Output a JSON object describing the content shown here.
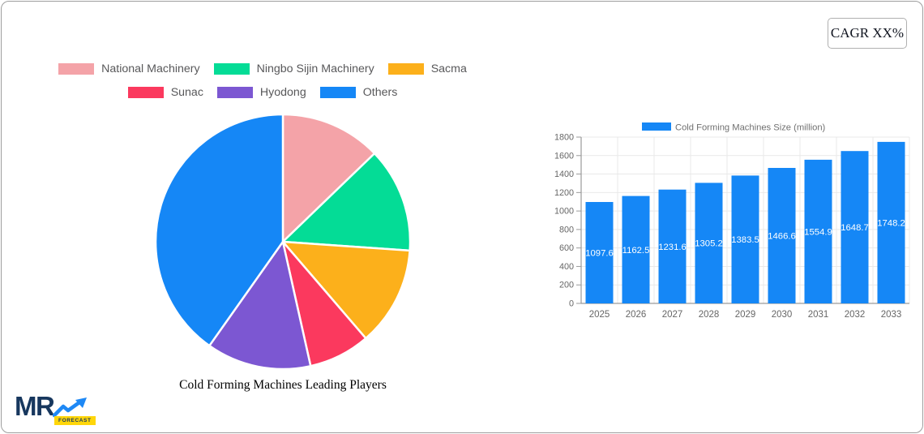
{
  "page": {
    "cagr_label": "CAGR XX%",
    "logo": {
      "text": "MR",
      "badge": "FORECAST",
      "navy": "#17375e",
      "blue": "#1e88f5",
      "yellow": "#ffd60a"
    }
  },
  "chart_data": [
    {
      "type": "pie",
      "title": "Cold Forming Machines Leading Players",
      "labels": [
        "National Machinery",
        "Ningbo Sijin Machinery",
        "Sacma",
        "Sunac",
        "Hyodong",
        "Others"
      ],
      "values": [
        12.8,
        13.3,
        12.6,
        7.8,
        13.3,
        40.2
      ],
      "colors": [
        "#f4a3a8",
        "#04dc96",
        "#fcb01b",
        "#fb395e",
        "#7c57d2",
        "#1587f6"
      ],
      "start_angle_deg": 0,
      "direction": "clockwise",
      "legend_position": "top",
      "legend_rows": [
        [
          0,
          1,
          2
        ],
        [
          3,
          4,
          5
        ]
      ],
      "slice_border_color": "#ffffff"
    },
    {
      "type": "bar",
      "legend": "Cold Forming Machines Size (million)",
      "categories": [
        "2025",
        "2026",
        "2027",
        "2028",
        "2029",
        "2030",
        "2031",
        "2032",
        "2033"
      ],
      "values": [
        1097.6,
        1162.5,
        1231.6,
        1305.2,
        1383.5,
        1466.6,
        1554.9,
        1648.7,
        1748.2
      ],
      "value_labels": [
        "1097.6",
        "1162.5",
        "1231.6",
        "1305.2",
        "1383.5",
        "1466.6",
        "1554.9",
        "1648.7",
        "1748.2"
      ],
      "bar_color": "#1587f6",
      "value_label_color": "#ffffff",
      "axis_color": "#9a9a9a",
      "grid_color": "#e9e9e9",
      "tick_label_color": "#666666",
      "legend_text_color": "#707070",
      "ylim": [
        0,
        1800
      ],
      "ytick_step": 200,
      "grid": true,
      "legend_position": "top"
    }
  ]
}
